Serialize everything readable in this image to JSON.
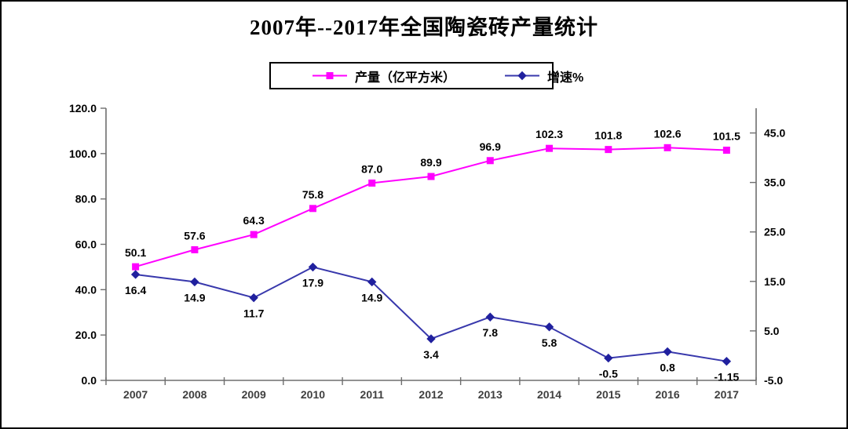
{
  "chart_data": {
    "type": "line",
    "title": "2007年--2017年全国陶瓷砖产量统计",
    "categories": [
      "2007",
      "2008",
      "2009",
      "2010",
      "2011",
      "2012",
      "2013",
      "2014",
      "2015",
      "2016",
      "2017"
    ],
    "series": [
      {
        "name": "产量（亿平方米）",
        "axis": "left",
        "color": "#FF00FF",
        "marker_color": "#FF00FF",
        "marker": "square",
        "label_position": "above",
        "values": [
          50.1,
          57.6,
          64.3,
          75.8,
          87.0,
          89.9,
          96.9,
          102.3,
          101.8,
          102.6,
          101.5
        ],
        "labels": [
          "50.1",
          "57.6",
          "64.3",
          "75.8",
          "87.0",
          "89.9",
          "96.9",
          "102.3",
          "101.8",
          "102.6",
          "101.5"
        ]
      },
      {
        "name": "增速%",
        "axis": "right",
        "color": "#3838AC",
        "marker_color": "#20209E",
        "marker": "diamond",
        "label_position": "below",
        "values": [
          16.4,
          14.9,
          11.7,
          17.9,
          14.9,
          3.4,
          7.8,
          5.8,
          -0.5,
          0.8,
          -1.15
        ],
        "labels": [
          "16.4",
          "14.9",
          "11.7",
          "17.9",
          "14.9",
          "3.4",
          "7.8",
          "5.8",
          "-0.5",
          "0.8",
          "-1.15"
        ]
      }
    ],
    "left_axis": {
      "min": 0,
      "max": 120,
      "step": 20,
      "tick_labels": [
        "0.0",
        "20.0",
        "40.0",
        "60.0",
        "80.0",
        "100.0",
        "120.0"
      ]
    },
    "right_axis": {
      "min": -5,
      "max": 50,
      "tick_values": [
        -5,
        5,
        15,
        25,
        35,
        45
      ],
      "tick_labels": [
        "-5.0",
        "5.0",
        "15.0",
        "25.0",
        "35.0",
        "45.0"
      ]
    },
    "legend_position": "top",
    "grid": false
  }
}
